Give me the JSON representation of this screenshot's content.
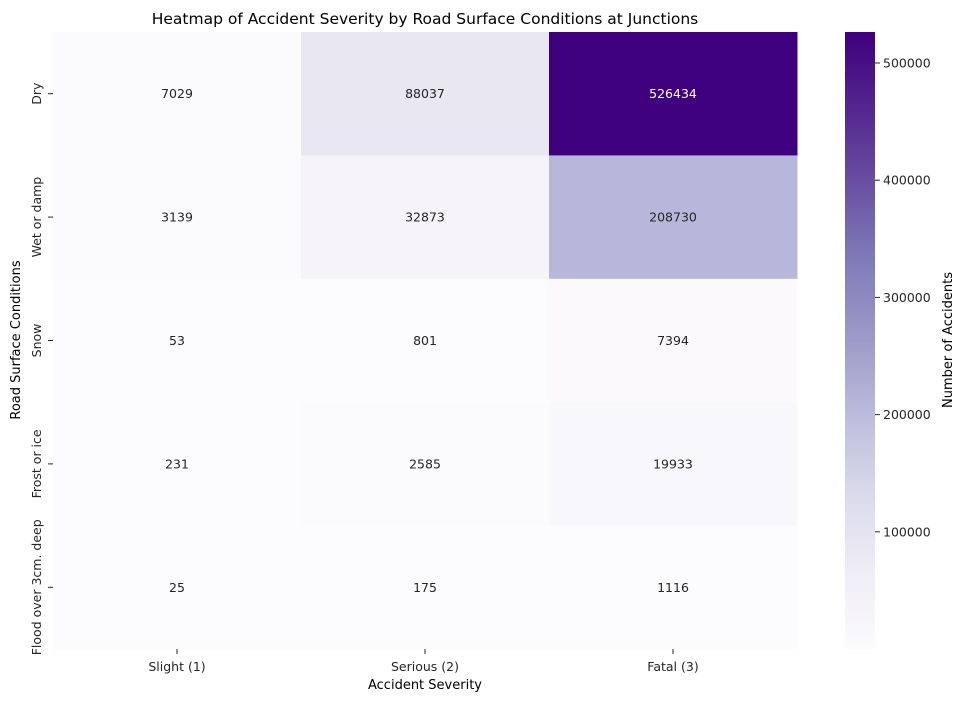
{
  "chart_data": {
    "type": "heatmap",
    "title": "Heatmap of Accident Severity by Road Surface Conditions at Junctions",
    "xlabel": "Accident Severity",
    "ylabel": "Road Surface Conditions",
    "x_categories": [
      "Slight (1)",
      "Serious (2)",
      "Fatal (3)"
    ],
    "y_categories": [
      "Dry",
      "Wet or damp",
      "Snow",
      "Frost or ice",
      "Flood over 3cm. deep"
    ],
    "values": [
      [
        7029,
        88037,
        526434
      ],
      [
        3139,
        32873,
        208730
      ],
      [
        53,
        801,
        7394
      ],
      [
        231,
        2585,
        19933
      ],
      [
        25,
        175,
        1116
      ]
    ],
    "colorbar": {
      "label": "Number of Accidents",
      "min": 25,
      "max": 526434,
      "ticks": [
        100000,
        200000,
        300000,
        400000,
        500000
      ],
      "colormap": "Purples",
      "colors": [
        "#fcfbfd",
        "#efedf5",
        "#dadaeb",
        "#bcbddc",
        "#9e9ac8",
        "#807dba",
        "#6a51a3",
        "#54278f",
        "#3f007d"
      ]
    }
  }
}
